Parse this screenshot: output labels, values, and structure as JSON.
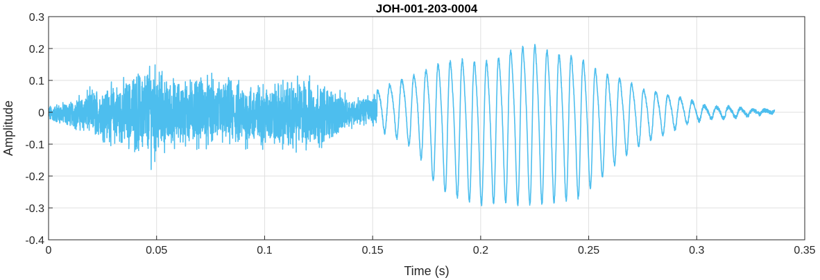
{
  "chart_data": {
    "type": "line",
    "title": "JOH-001-203-0004",
    "xlabel": "Time (s)",
    "ylabel": "Amplitude",
    "xlim": [
      0,
      0.35
    ],
    "ylim": [
      -0.4,
      0.3
    ],
    "grid": true,
    "xticks": [
      0,
      0.05,
      0.1,
      0.15,
      0.2,
      0.25,
      0.3,
      0.35
    ],
    "xtick_labels": [
      "0",
      "0.05",
      "0.1",
      "0.15",
      "0.2",
      "0.25",
      "0.3",
      "0.35"
    ],
    "yticks": [
      -0.4,
      -0.3,
      -0.2,
      -0.1,
      0,
      0.1,
      0.2,
      0.3
    ],
    "ytick_labels": [
      "-0.4",
      "-0.3",
      "-0.2",
      "-0.1",
      "0",
      "0.1",
      "0.2",
      "0.3"
    ],
    "series": [
      {
        "color": "#4DBEEE",
        "x_start": 0,
        "x_end": 0.336,
        "envelope": {
          "description_points_t": [
            0.0,
            0.01,
            0.02,
            0.03,
            0.04,
            0.048,
            0.055,
            0.07,
            0.09,
            0.1,
            0.11,
            0.12,
            0.13,
            0.14,
            0.15,
            0.16,
            0.17,
            0.18,
            0.19,
            0.2,
            0.21,
            0.215,
            0.226,
            0.235,
            0.245,
            0.255,
            0.265,
            0.275,
            0.285,
            0.295,
            0.305,
            0.315,
            0.325,
            0.336
          ],
          "max": [
            0.03,
            0.05,
            0.1,
            0.12,
            0.16,
            0.22,
            0.14,
            0.15,
            0.13,
            0.12,
            0.14,
            0.15,
            0.11,
            0.06,
            0.07,
            0.11,
            0.14,
            0.19,
            0.21,
            0.2,
            0.22,
            0.25,
            0.26,
            0.23,
            0.22,
            0.16,
            0.13,
            0.09,
            0.07,
            0.05,
            0.02,
            0.02,
            0.01,
            0.005
          ],
          "min": [
            -0.04,
            -0.06,
            -0.1,
            -0.13,
            -0.16,
            -0.21,
            -0.15,
            -0.14,
            -0.15,
            -0.14,
            -0.16,
            -0.16,
            -0.12,
            -0.06,
            -0.05,
            -0.08,
            -0.12,
            -0.25,
            -0.28,
            -0.3,
            -0.29,
            -0.3,
            -0.3,
            -0.29,
            -0.28,
            -0.22,
            -0.15,
            -0.1,
            -0.07,
            -0.04,
            -0.02,
            -0.02,
            -0.01,
            0.0
          ]
        }
      }
    ]
  }
}
